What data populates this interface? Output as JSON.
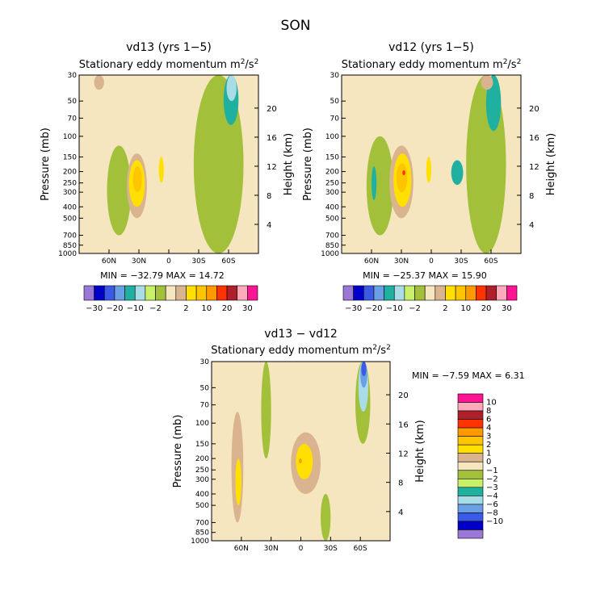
{
  "page": {
    "title": "SON"
  },
  "colors": {
    "cream": "#f5e6c0",
    "tan": "#d9b48f",
    "yellow": "#ffe000",
    "gold": "#ffc600",
    "orange": "#ff9900",
    "red": "#ff3300",
    "olive": "#a3c03a",
    "lightgreen": "#c8f06a",
    "teal": "#20b0a0",
    "lightblue": "#a8dce6",
    "skyblue": "#6a9fe6",
    "blue": "#3b5be6",
    "darkblue": "#0000c8",
    "purple": "#9a78d8",
    "darkred": "#b0202a",
    "pink": "#ffaabb",
    "magenta": "#ff1493"
  },
  "chart_data": [
    {
      "type": "heatmap",
      "id": "p1",
      "title": "vd13 (yrs 1−5)",
      "subtitle": "Stationary eddy momentum",
      "units_base": "m",
      "units_exp1": "2",
      "units_mid": "/s",
      "units_exp2": "2",
      "ylabel": "Pressure (mb)",
      "y2label": "Height (km)",
      "x_ticks": [
        "60N",
        "30N",
        "0",
        "30S",
        "60S"
      ],
      "x_tick_values": [
        60,
        30,
        0,
        -30,
        -60
      ],
      "xlim": [
        90,
        -90
      ],
      "y_ticks": [
        "30",
        "50",
        "70",
        "100",
        "150",
        "200",
        "250",
        "300",
        "400",
        "500",
        "700",
        "850",
        "1000"
      ],
      "y_tick_values": [
        30,
        50,
        70,
        100,
        150,
        200,
        250,
        300,
        400,
        500,
        700,
        850,
        1000
      ],
      "ylim_mb": [
        1000,
        30
      ],
      "height_ticks": [
        "20",
        "16",
        "12",
        "8",
        "4"
      ],
      "height_tick_values": [
        20,
        16,
        12,
        8,
        4
      ],
      "min_text": "MIN = −32.79",
      "max_text": "MAX =  14.72",
      "colorbar": {
        "orientation": "horizontal",
        "colors": [
          "purple",
          "darkblue",
          "blue",
          "skyblue",
          "teal",
          "lightblue",
          "lightgreen",
          "olive",
          "cream",
          "tan",
          "yellow",
          "gold",
          "orange",
          "red",
          "darkred",
          "pink",
          "magenta"
        ],
        "labels": [
          "−30",
          "−20",
          "−10",
          "−2",
          "2",
          "10",
          "20",
          "30"
        ]
      },
      "regions": [
        {
          "level": "olive",
          "lat_range": [
            62,
            38
          ],
          "p_range": [
            120,
            700
          ]
        },
        {
          "level": "tan",
          "lat_range": [
            42,
            22
          ],
          "p_range": [
            140,
            500
          ]
        },
        {
          "level": "yellow",
          "lat_range": [
            40,
            24
          ],
          "p_range": [
            160,
            400
          ]
        },
        {
          "level": "gold",
          "lat_range": [
            36,
            27
          ],
          "p_range": [
            180,
            300
          ]
        },
        {
          "level": "yellow",
          "lat_range": [
            10,
            5
          ],
          "p_range": [
            150,
            250
          ]
        },
        {
          "level": "olive",
          "lat_range": [
            -25,
            -75
          ],
          "p_range": [
            30,
            1000
          ]
        },
        {
          "level": "teal",
          "lat_range": [
            -55,
            -70
          ],
          "p_range": [
            30,
            80
          ]
        },
        {
          "level": "lightblue",
          "lat_range": [
            -58,
            -68
          ],
          "p_range": [
            30,
            50
          ]
        },
        {
          "level": "tan",
          "lat_range": [
            75,
            65
          ],
          "p_range": [
            30,
            40
          ]
        }
      ]
    },
    {
      "type": "heatmap",
      "id": "p2",
      "title": "vd12 (yrs 1−5)",
      "subtitle": "Stationary eddy momentum",
      "units_base": "m",
      "units_exp1": "2",
      "units_mid": "/s",
      "units_exp2": "2",
      "ylabel": "Pressure (mb)",
      "y2label": "Height (km)",
      "x_ticks": [
        "60N",
        "30N",
        "0",
        "30S",
        "60S"
      ],
      "x_tick_values": [
        60,
        30,
        0,
        -30,
        -60
      ],
      "xlim": [
        90,
        -90
      ],
      "y_ticks": [
        "30",
        "50",
        "70",
        "100",
        "150",
        "200",
        "250",
        "300",
        "400",
        "500",
        "700",
        "850",
        "1000"
      ],
      "y_tick_values": [
        30,
        50,
        70,
        100,
        150,
        200,
        250,
        300,
        400,
        500,
        700,
        850,
        1000
      ],
      "ylim_mb": [
        1000,
        30
      ],
      "height_ticks": [
        "20",
        "16",
        "12",
        "8",
        "4"
      ],
      "height_tick_values": [
        20,
        16,
        12,
        8,
        4
      ],
      "min_text": "MIN = −25.37",
      "max_text": "MAX =  15.90",
      "colorbar": {
        "orientation": "horizontal",
        "colors": [
          "purple",
          "darkblue",
          "blue",
          "skyblue",
          "teal",
          "lightblue",
          "lightgreen",
          "olive",
          "cream",
          "tan",
          "yellow",
          "gold",
          "orange",
          "red",
          "darkred",
          "pink",
          "magenta"
        ],
        "labels": [
          "−30",
          "−20",
          "−10",
          "−2",
          "2",
          "10",
          "20",
          "30"
        ]
      },
      "regions": [
        {
          "level": "olive",
          "lat_range": [
            65,
            38
          ],
          "p_range": [
            100,
            700
          ]
        },
        {
          "level": "teal",
          "lat_range": [
            60,
            55
          ],
          "p_range": [
            180,
            350
          ]
        },
        {
          "level": "tan",
          "lat_range": [
            42,
            18
          ],
          "p_range": [
            120,
            500
          ]
        },
        {
          "level": "yellow",
          "lat_range": [
            38,
            20
          ],
          "p_range": [
            140,
            400
          ]
        },
        {
          "level": "gold",
          "lat_range": [
            35,
            24
          ],
          "p_range": [
            170,
            300
          ]
        },
        {
          "level": "red",
          "lat_range": [
            29,
            26
          ],
          "p_range": [
            195,
            215
          ]
        },
        {
          "level": "yellow",
          "lat_range": [
            5,
            0
          ],
          "p_range": [
            150,
            250
          ]
        },
        {
          "level": "teal",
          "lat_range": [
            -20,
            -32
          ],
          "p_range": [
            160,
            260
          ]
        },
        {
          "level": "olive",
          "lat_range": [
            -35,
            -75
          ],
          "p_range": [
            30,
            1000
          ]
        },
        {
          "level": "teal",
          "lat_range": [
            -55,
            -70
          ],
          "p_range": [
            30,
            90
          ]
        },
        {
          "level": "tan",
          "lat_range": [
            -50,
            -62
          ],
          "p_range": [
            30,
            40
          ]
        }
      ]
    },
    {
      "type": "heatmap",
      "id": "p3",
      "title": "vd13 − vd12",
      "subtitle": "Stationary eddy momentum",
      "units_base": "m",
      "units_exp1": "2",
      "units_mid": "/s",
      "units_exp2": "2",
      "ylabel": "Pressure (mb)",
      "y2label": "Height (km)",
      "x_ticks": [
        "60N",
        "30N",
        "0",
        "30S",
        "60S"
      ],
      "x_tick_values": [
        60,
        30,
        0,
        -30,
        -60
      ],
      "xlim": [
        90,
        -90
      ],
      "y_ticks": [
        "30",
        "50",
        "70",
        "100",
        "150",
        "200",
        "250",
        "300",
        "400",
        "500",
        "700",
        "850",
        "1000"
      ],
      "y_tick_values": [
        30,
        50,
        70,
        100,
        150,
        200,
        250,
        300,
        400,
        500,
        700,
        850,
        1000
      ],
      "ylim_mb": [
        1000,
        30
      ],
      "height_ticks": [
        "20",
        "16",
        "12",
        "8",
        "4"
      ],
      "height_tick_values": [
        20,
        16,
        12,
        8,
        4
      ],
      "min_text": "MIN =   −7.59",
      "max_text": "MAX =    6.31",
      "colorbar": {
        "orientation": "vertical",
        "colors": [
          "magenta",
          "pink",
          "darkred",
          "red",
          "orange",
          "gold",
          "yellow",
          "tan",
          "cream",
          "olive",
          "lightgreen",
          "teal",
          "lightblue",
          "skyblue",
          "blue",
          "darkblue",
          "purple"
        ],
        "labels": [
          "10",
          "8",
          "6",
          "4",
          "3",
          "2",
          "1",
          "0",
          "−1",
          "−2",
          "−3",
          "−4",
          "−6",
          "−8",
          "−10"
        ]
      },
      "regions": [
        {
          "level": "tan",
          "lat_range": [
            70,
            58
          ],
          "p_range": [
            80,
            700
          ]
        },
        {
          "level": "yellow",
          "lat_range": [
            66,
            60
          ],
          "p_range": [
            200,
            500
          ]
        },
        {
          "level": "tan",
          "lat_range": [
            10,
            -20
          ],
          "p_range": [
            120,
            400
          ]
        },
        {
          "level": "yellow",
          "lat_range": [
            5,
            -12
          ],
          "p_range": [
            150,
            300
          ]
        },
        {
          "level": "orange",
          "lat_range": [
            2,
            -1
          ],
          "p_range": [
            200,
            220
          ]
        },
        {
          "level": "olive",
          "lat_range": [
            -55,
            -70
          ],
          "p_range": [
            30,
            150
          ]
        },
        {
          "level": "lightblue",
          "lat_range": [
            -58,
            -68
          ],
          "p_range": [
            30,
            80
          ]
        },
        {
          "level": "skyblue",
          "lat_range": [
            -60,
            -67
          ],
          "p_range": [
            30,
            50
          ]
        },
        {
          "level": "blue",
          "lat_range": [
            -61,
            -66
          ],
          "p_range": [
            30,
            40
          ]
        },
        {
          "level": "olive",
          "lat_range": [
            40,
            30
          ],
          "p_range": [
            30,
            200
          ]
        },
        {
          "level": "olive",
          "lat_range": [
            -20,
            -30
          ],
          "p_range": [
            400,
            1000
          ]
        }
      ]
    }
  ]
}
